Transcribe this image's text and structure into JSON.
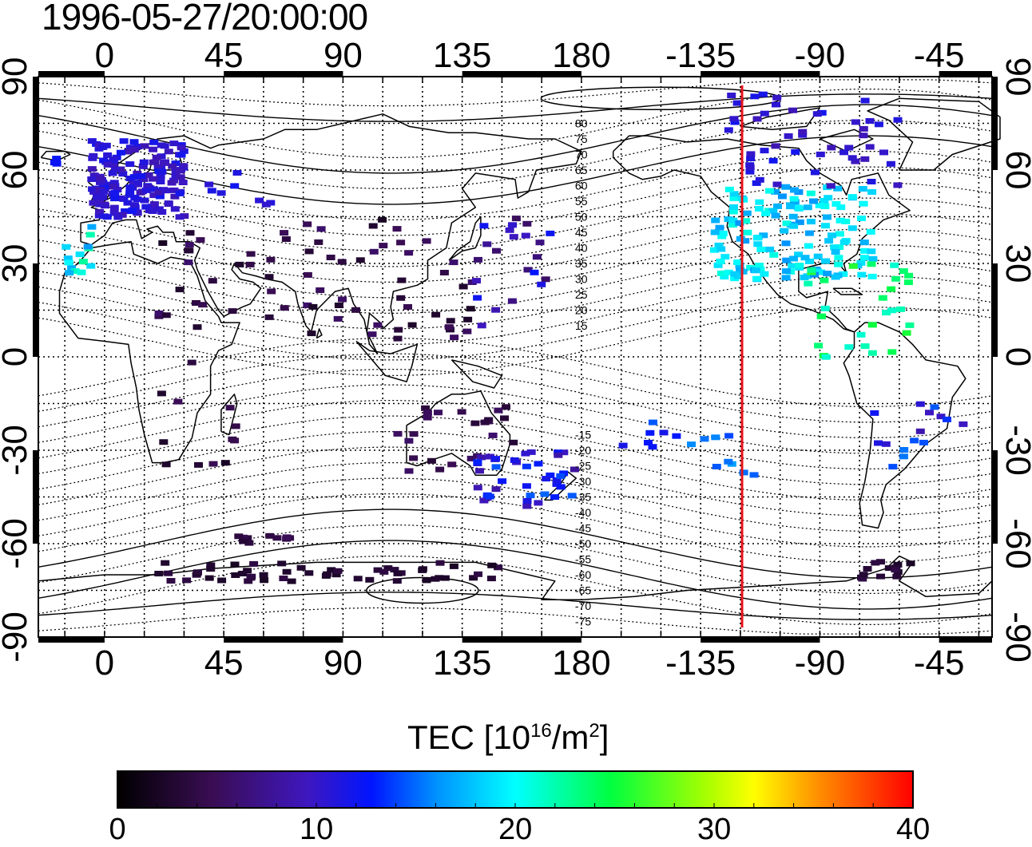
{
  "title": "1996-05-27/20:00:00",
  "map": {
    "lon_ticks_top": [
      "0",
      "45",
      "90",
      "135",
      "180",
      "-135",
      "-90",
      "-45"
    ],
    "lon_ticks_bottom": [
      "0",
      "45",
      "90",
      "135",
      "180",
      "-135",
      "-90",
      "-45"
    ],
    "lat_ticks_left": [
      "90",
      "60",
      "30",
      "0",
      "-30",
      "-60",
      "-90"
    ],
    "lat_ticks_right": [
      "90",
      "60",
      "30",
      "0",
      "-30",
      "-60",
      "-90"
    ],
    "contour_labels_north": [
      "80",
      "75",
      "70",
      "65",
      "60",
      "55",
      "50",
      "45",
      "40",
      "35",
      "30",
      "25",
      "20",
      "15"
    ],
    "contour_labels_south": [
      "-15",
      "-20",
      "-25",
      "-30",
      "-35",
      "-40",
      "-45",
      "-50",
      "-55",
      "-60",
      "-65",
      "-70",
      "-75"
    ],
    "terminator_line_color": "#e8121b",
    "grid": true,
    "projection": "equirectangular, lon -25..335 (wrapped)"
  },
  "colorbar": {
    "title_main": "TEC  [10",
    "title_exp": "16",
    "title_unit": "/m",
    "title_exp2": "2",
    "title_close": "]",
    "min": 0,
    "max": 40,
    "ticks": [
      "0",
      "10",
      "20",
      "30",
      "40"
    ],
    "colormap": "black-purple-blue-cyan-green-yellow-red"
  }
}
